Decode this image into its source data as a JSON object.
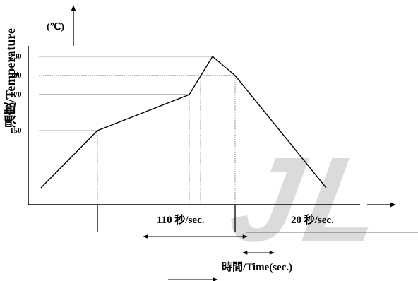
{
  "diagram": {
    "unit_label": "(℃)",
    "y_axis_label": "温度/Temperature",
    "y_ticks": [
      {
        "label": "230",
        "value": 230
      },
      {
        "label": "200",
        "value": 200
      },
      {
        "label": "170",
        "value": 170
      },
      {
        "label": "150",
        "value": 150
      }
    ],
    "duration_label_1": "110 秒/sec.",
    "duration_label_2": "20 秒/sec.",
    "x_axis_label": "時間/Time(sec.)",
    "watermark": "JL"
  }
}
